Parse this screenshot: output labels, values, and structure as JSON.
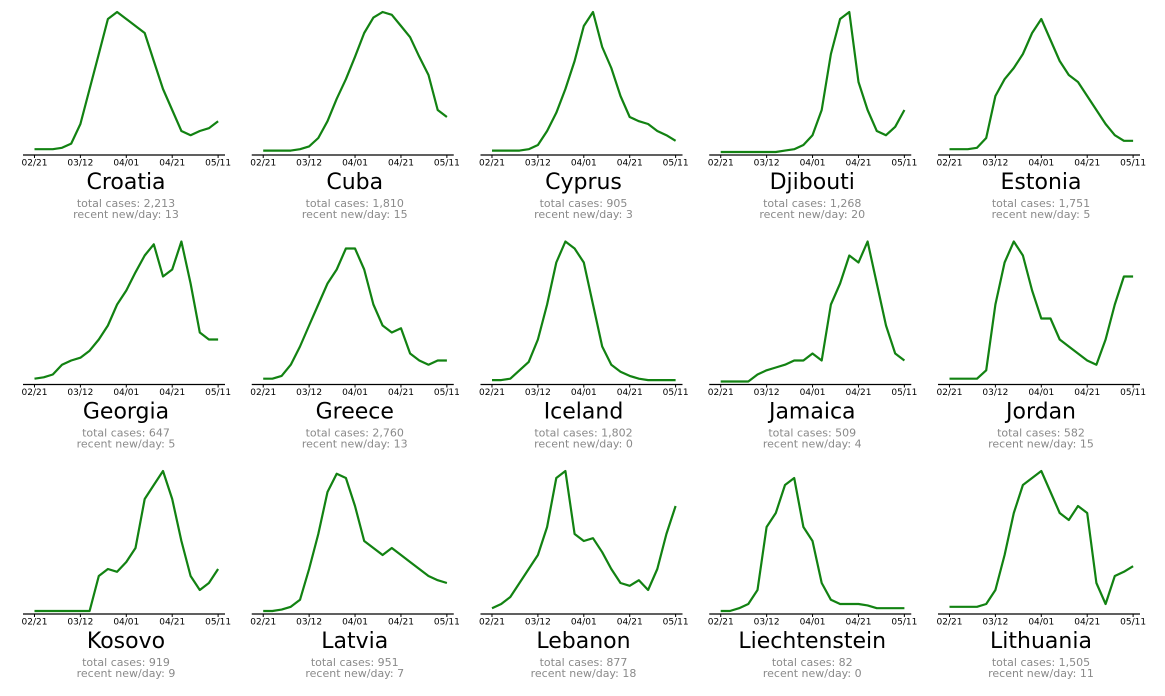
{
  "chart_data": [
    {
      "type": "line",
      "title": "Croatia",
      "annotations": [
        "total cases: 2,213",
        "recent new/day: 13"
      ],
      "color": "#128212",
      "xlim": [
        -5,
        83
      ],
      "ylim": [
        0,
        100
      ],
      "xticks": [
        {
          "value": 0,
          "label": "02/21"
        },
        {
          "value": 20,
          "label": "03/12"
        },
        {
          "value": 40,
          "label": "04/01"
        },
        {
          "value": 60,
          "label": "04/21"
        },
        {
          "value": 80,
          "label": "05/11"
        }
      ],
      "x": [
        0,
        4,
        8,
        12,
        16,
        20,
        24,
        28,
        32,
        36,
        40,
        44,
        48,
        52,
        56,
        60,
        64,
        68,
        72,
        76,
        80
      ],
      "values": [
        2,
        2,
        2,
        3,
        6,
        20,
        45,
        70,
        95,
        100,
        95,
        90,
        85,
        65,
        45,
        30,
        15,
        12,
        15,
        17,
        22
      ]
    },
    {
      "type": "line",
      "title": "Cuba",
      "annotations": [
        "total cases: 1,810",
        "recent new/day: 15"
      ],
      "color": "#128212",
      "xlim": [
        -5,
        83
      ],
      "ylim": [
        0,
        100
      ],
      "xticks": [
        {
          "value": 0,
          "label": "02/21"
        },
        {
          "value": 20,
          "label": "03/12"
        },
        {
          "value": 40,
          "label": "04/01"
        },
        {
          "value": 60,
          "label": "04/21"
        },
        {
          "value": 80,
          "label": "05/11"
        }
      ],
      "x": [
        0,
        4,
        8,
        12,
        16,
        20,
        24,
        28,
        32,
        36,
        40,
        44,
        48,
        52,
        56,
        60,
        64,
        68,
        72,
        76,
        80
      ],
      "values": [
        1,
        1,
        1,
        1,
        2,
        4,
        10,
        22,
        38,
        52,
        68,
        85,
        96,
        100,
        98,
        90,
        82,
        68,
        55,
        30,
        25
      ]
    },
    {
      "type": "line",
      "title": "Cyprus",
      "annotations": [
        "total cases: 905",
        "recent new/day: 3"
      ],
      "color": "#128212",
      "xlim": [
        -5,
        83
      ],
      "ylim": [
        0,
        100
      ],
      "xticks": [
        {
          "value": 0,
          "label": "02/21"
        },
        {
          "value": 20,
          "label": "03/12"
        },
        {
          "value": 40,
          "label": "04/01"
        },
        {
          "value": 60,
          "label": "04/21"
        },
        {
          "value": 80,
          "label": "05/11"
        }
      ],
      "x": [
        0,
        4,
        8,
        12,
        16,
        20,
        24,
        28,
        32,
        36,
        40,
        44,
        48,
        52,
        56,
        60,
        64,
        68,
        72,
        76,
        80
      ],
      "values": [
        1,
        1,
        1,
        1,
        2,
        5,
        15,
        28,
        45,
        65,
        90,
        100,
        75,
        60,
        40,
        25,
        22,
        20,
        15,
        12,
        8
      ]
    },
    {
      "type": "line",
      "title": "Djibouti",
      "annotations": [
        "total cases: 1,268",
        "recent new/day: 20"
      ],
      "color": "#128212",
      "xlim": [
        -5,
        83
      ],
      "ylim": [
        0,
        100
      ],
      "xticks": [
        {
          "value": 0,
          "label": "02/21"
        },
        {
          "value": 20,
          "label": "03/12"
        },
        {
          "value": 40,
          "label": "04/01"
        },
        {
          "value": 60,
          "label": "04/21"
        },
        {
          "value": 80,
          "label": "05/11"
        }
      ],
      "x": [
        0,
        4,
        8,
        12,
        16,
        20,
        24,
        28,
        32,
        36,
        40,
        44,
        48,
        52,
        56,
        60,
        64,
        68,
        72,
        76,
        80
      ],
      "values": [
        0,
        0,
        0,
        0,
        0,
        0,
        0,
        1,
        2,
        5,
        12,
        30,
        70,
        95,
        100,
        50,
        30,
        15,
        12,
        18,
        30
      ]
    },
    {
      "type": "line",
      "title": "Estonia",
      "annotations": [
        "total cases: 1,751",
        "recent new/day: 5"
      ],
      "color": "#128212",
      "xlim": [
        -5,
        83
      ],
      "ylim": [
        0,
        100
      ],
      "xticks": [
        {
          "value": 0,
          "label": "02/21"
        },
        {
          "value": 20,
          "label": "03/12"
        },
        {
          "value": 40,
          "label": "04/01"
        },
        {
          "value": 60,
          "label": "04/21"
        },
        {
          "value": 80,
          "label": "05/11"
        }
      ],
      "x": [
        0,
        4,
        8,
        12,
        16,
        20,
        24,
        28,
        32,
        36,
        40,
        44,
        48,
        52,
        56,
        60,
        64,
        68,
        72,
        76,
        80
      ],
      "values": [
        2,
        2,
        2,
        3,
        10,
        40,
        52,
        60,
        70,
        85,
        95,
        80,
        65,
        55,
        50,
        40,
        30,
        20,
        12,
        8,
        8
      ]
    },
    {
      "type": "line",
      "title": "Georgia",
      "annotations": [
        "total cases: 647",
        "recent new/day: 5"
      ],
      "color": "#128212",
      "xlim": [
        -5,
        83
      ],
      "ylim": [
        0,
        100
      ],
      "xticks": [
        {
          "value": 0,
          "label": "02/21"
        },
        {
          "value": 20,
          "label": "03/12"
        },
        {
          "value": 40,
          "label": "04/01"
        },
        {
          "value": 60,
          "label": "04/21"
        },
        {
          "value": 80,
          "label": "05/11"
        }
      ],
      "x": [
        0,
        4,
        8,
        12,
        16,
        20,
        24,
        28,
        32,
        36,
        40,
        44,
        48,
        52,
        56,
        60,
        64,
        68,
        72,
        76,
        80
      ],
      "values": [
        2,
        3,
        5,
        12,
        15,
        17,
        22,
        30,
        40,
        55,
        65,
        78,
        90,
        98,
        75,
        80,
        100,
        70,
        35,
        30,
        30
      ]
    },
    {
      "type": "line",
      "title": "Greece",
      "annotations": [
        "total cases: 2,760",
        "recent new/day: 13"
      ],
      "color": "#128212",
      "xlim": [
        -5,
        83
      ],
      "ylim": [
        0,
        100
      ],
      "xticks": [
        {
          "value": 0,
          "label": "02/21"
        },
        {
          "value": 20,
          "label": "03/12"
        },
        {
          "value": 40,
          "label": "04/01"
        },
        {
          "value": 60,
          "label": "04/21"
        },
        {
          "value": 80,
          "label": "05/11"
        }
      ],
      "x": [
        0,
        4,
        8,
        12,
        16,
        20,
        24,
        28,
        32,
        36,
        40,
        44,
        48,
        52,
        56,
        60,
        64,
        68,
        72,
        76,
        80
      ],
      "values": [
        2,
        2,
        4,
        12,
        25,
        40,
        55,
        70,
        80,
        95,
        95,
        80,
        55,
        40,
        35,
        38,
        20,
        15,
        12,
        15,
        15
      ]
    },
    {
      "type": "line",
      "title": "Iceland",
      "annotations": [
        "total cases: 1,802",
        "recent new/day: 0"
      ],
      "color": "#128212",
      "xlim": [
        -5,
        83
      ],
      "ylim": [
        0,
        100
      ],
      "xticks": [
        {
          "value": 0,
          "label": "02/21"
        },
        {
          "value": 20,
          "label": "03/12"
        },
        {
          "value": 40,
          "label": "04/01"
        },
        {
          "value": 60,
          "label": "04/21"
        },
        {
          "value": 80,
          "label": "05/11"
        }
      ],
      "x": [
        0,
        4,
        8,
        12,
        16,
        20,
        24,
        28,
        32,
        36,
        40,
        44,
        48,
        52,
        56,
        60,
        64,
        68,
        72,
        76,
        80
      ],
      "values": [
        1,
        1,
        2,
        8,
        14,
        30,
        55,
        85,
        100,
        95,
        85,
        55,
        25,
        12,
        7,
        4,
        2,
        1,
        1,
        1,
        1
      ]
    },
    {
      "type": "line",
      "title": "Jamaica",
      "annotations": [
        "total cases: 509",
        "recent new/day: 4"
      ],
      "color": "#128212",
      "xlim": [
        -5,
        83
      ],
      "ylim": [
        0,
        100
      ],
      "xticks": [
        {
          "value": 0,
          "label": "02/21"
        },
        {
          "value": 20,
          "label": "03/12"
        },
        {
          "value": 40,
          "label": "04/01"
        },
        {
          "value": 60,
          "label": "04/21"
        },
        {
          "value": 80,
          "label": "05/11"
        }
      ],
      "x": [
        0,
        4,
        8,
        12,
        16,
        20,
        24,
        28,
        32,
        36,
        40,
        44,
        48,
        52,
        56,
        60,
        64,
        68,
        72,
        76,
        80
      ],
      "values": [
        0,
        0,
        0,
        0,
        5,
        8,
        10,
        12,
        15,
        15,
        20,
        15,
        55,
        70,
        90,
        85,
        100,
        70,
        40,
        20,
        15
      ]
    },
    {
      "type": "line",
      "title": "Jordan",
      "annotations": [
        "total cases: 582",
        "recent new/day: 15"
      ],
      "color": "#128212",
      "xlim": [
        -5,
        83
      ],
      "ylim": [
        0,
        100
      ],
      "xticks": [
        {
          "value": 0,
          "label": "02/21"
        },
        {
          "value": 20,
          "label": "03/12"
        },
        {
          "value": 40,
          "label": "04/01"
        },
        {
          "value": 60,
          "label": "04/21"
        },
        {
          "value": 80,
          "label": "05/11"
        }
      ],
      "x": [
        0,
        4,
        8,
        12,
        16,
        20,
        24,
        28,
        32,
        36,
        40,
        44,
        48,
        52,
        56,
        60,
        64,
        68,
        72,
        76,
        80
      ],
      "values": [
        2,
        2,
        2,
        2,
        8,
        55,
        85,
        100,
        90,
        65,
        45,
        45,
        30,
        25,
        20,
        15,
        12,
        30,
        55,
        75,
        75
      ]
    },
    {
      "type": "line",
      "title": "Kosovo",
      "annotations": [
        "total cases: 919",
        "recent new/day: 9"
      ],
      "color": "#128212",
      "xlim": [
        -5,
        83
      ],
      "ylim": [
        0,
        100
      ],
      "xticks": [
        {
          "value": 0,
          "label": "02/21"
        },
        {
          "value": 20,
          "label": "03/12"
        },
        {
          "value": 40,
          "label": "04/01"
        },
        {
          "value": 60,
          "label": "04/21"
        },
        {
          "value": 80,
          "label": "05/11"
        }
      ],
      "x": [
        0,
        4,
        8,
        12,
        16,
        20,
        24,
        28,
        32,
        36,
        40,
        44,
        48,
        52,
        56,
        60,
        64,
        68,
        72,
        76,
        80
      ],
      "values": [
        0,
        0,
        0,
        0,
        0,
        0,
        0,
        25,
        30,
        28,
        35,
        45,
        80,
        90,
        100,
        80,
        50,
        25,
        15,
        20,
        30
      ]
    },
    {
      "type": "line",
      "title": "Latvia",
      "annotations": [
        "total cases: 951",
        "recent new/day: 7"
      ],
      "color": "#128212",
      "xlim": [
        -5,
        83
      ],
      "ylim": [
        0,
        100
      ],
      "xticks": [
        {
          "value": 0,
          "label": "02/21"
        },
        {
          "value": 20,
          "label": "03/12"
        },
        {
          "value": 40,
          "label": "04/01"
        },
        {
          "value": 60,
          "label": "04/21"
        },
        {
          "value": 80,
          "label": "05/11"
        }
      ],
      "x": [
        0,
        4,
        8,
        12,
        16,
        20,
        24,
        28,
        32,
        36,
        40,
        44,
        48,
        52,
        56,
        60,
        64,
        68,
        72,
        76,
        80
      ],
      "values": [
        0,
        0,
        1,
        3,
        8,
        30,
        55,
        85,
        98,
        95,
        75,
        50,
        45,
        40,
        45,
        40,
        35,
        30,
        25,
        22,
        20
      ]
    },
    {
      "type": "line",
      "title": "Lebanon",
      "annotations": [
        "total cases: 877",
        "recent new/day: 18"
      ],
      "color": "#128212",
      "xlim": [
        -5,
        83
      ],
      "ylim": [
        0,
        100
      ],
      "xticks": [
        {
          "value": 0,
          "label": "02/21"
        },
        {
          "value": 20,
          "label": "03/12"
        },
        {
          "value": 40,
          "label": "04/01"
        },
        {
          "value": 60,
          "label": "04/21"
        },
        {
          "value": 80,
          "label": "05/11"
        }
      ],
      "x": [
        0,
        4,
        8,
        12,
        16,
        20,
        24,
        28,
        32,
        36,
        40,
        44,
        48,
        52,
        56,
        60,
        64,
        68,
        72,
        76,
        80
      ],
      "values": [
        2,
        5,
        10,
        20,
        30,
        40,
        60,
        95,
        100,
        55,
        50,
        52,
        42,
        30,
        20,
        18,
        22,
        15,
        30,
        55,
        75
      ]
    },
    {
      "type": "line",
      "title": "Liechtenstein",
      "annotations": [
        "total cases: 82",
        "recent new/day: 0"
      ],
      "color": "#128212",
      "xlim": [
        -5,
        83
      ],
      "ylim": [
        0,
        100
      ],
      "xticks": [
        {
          "value": 0,
          "label": "02/21"
        },
        {
          "value": 20,
          "label": "03/12"
        },
        {
          "value": 40,
          "label": "04/01"
        },
        {
          "value": 60,
          "label": "04/21"
        },
        {
          "value": 80,
          "label": "05/11"
        }
      ],
      "x": [
        0,
        4,
        8,
        12,
        16,
        20,
        24,
        28,
        32,
        36,
        40,
        44,
        48,
        52,
        56,
        60,
        64,
        68,
        72,
        76,
        80
      ],
      "values": [
        0,
        0,
        2,
        5,
        15,
        60,
        70,
        90,
        95,
        60,
        50,
        20,
        8,
        5,
        5,
        5,
        4,
        2,
        2,
        2,
        2
      ]
    },
    {
      "type": "line",
      "title": "Lithuania",
      "annotations": [
        "total cases: 1,505",
        "recent new/day: 11"
      ],
      "color": "#128212",
      "xlim": [
        -5,
        83
      ],
      "ylim": [
        0,
        100
      ],
      "xticks": [
        {
          "value": 0,
          "label": "02/21"
        },
        {
          "value": 20,
          "label": "03/12"
        },
        {
          "value": 40,
          "label": "04/01"
        },
        {
          "value": 60,
          "label": "04/21"
        },
        {
          "value": 80,
          "label": "05/11"
        }
      ],
      "x": [
        0,
        4,
        8,
        12,
        16,
        20,
        24,
        28,
        32,
        36,
        40,
        44,
        48,
        52,
        56,
        60,
        64,
        68,
        72,
        76,
        80
      ],
      "values": [
        3,
        3,
        3,
        3,
        5,
        15,
        40,
        70,
        90,
        95,
        100,
        85,
        70,
        65,
        75,
        70,
        20,
        5,
        25,
        28,
        32
      ]
    }
  ]
}
